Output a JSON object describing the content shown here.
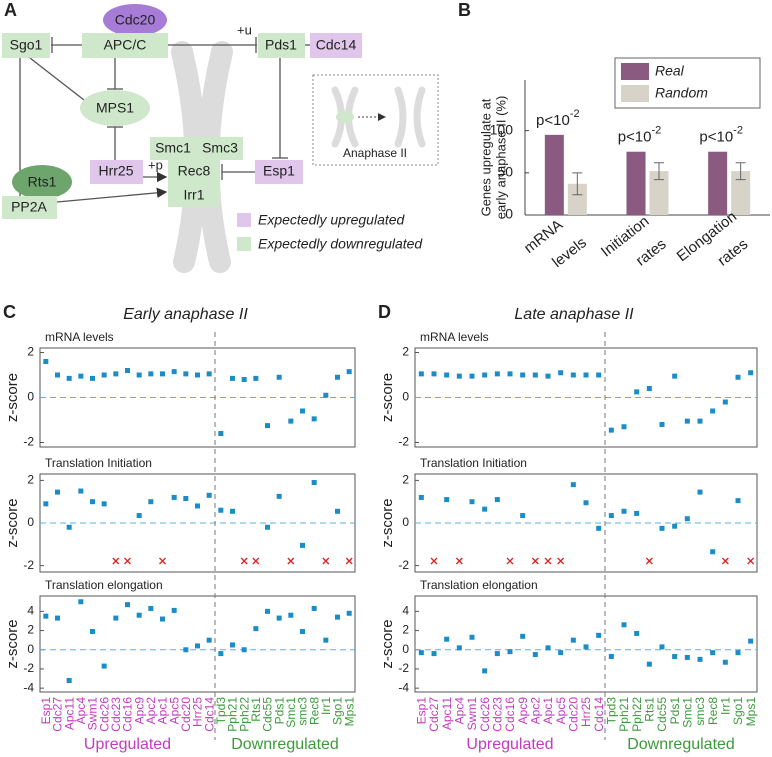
{
  "diagram": {
    "panel_label": "A",
    "nodes": [
      {
        "label": "Cdc20"
      },
      {
        "label": "APC/C"
      },
      {
        "label": "Sgo1"
      },
      {
        "label": "Pds1"
      },
      {
        "label": "Cdc14"
      },
      {
        "label": "MPS1"
      },
      {
        "label": "Hrr25"
      },
      {
        "label": "Smc1"
      },
      {
        "label": "Smc3"
      },
      {
        "label": "Rec8"
      },
      {
        "label": "Irr1"
      },
      {
        "label": "Esp1"
      },
      {
        "label": "Rts1"
      },
      {
        "label": "PP2A"
      }
    ],
    "edge_labels": [
      "+u",
      "+p"
    ],
    "legend": [
      "Expectedly upregulated",
      "Expectedly downregulated"
    ],
    "inset_label": "Anaphase II"
  },
  "chart_data": [
    {
      "type": "bar",
      "panel_label": "B",
      "ylabel": [
        "Genes upregulate at",
        "early anaphase II (%)"
      ],
      "categories": [
        [
          "mRNA",
          "levels"
        ],
        [
          "Initiation",
          "rates"
        ],
        [
          "Elongation",
          "rates"
        ]
      ],
      "series": [
        {
          "name": "Real",
          "color": "#8a5a80",
          "values": [
            95,
            75,
            75
          ]
        },
        {
          "name": "Random",
          "color": "#d8d3c8",
          "values": [
            37,
            52,
            52
          ],
          "errors": [
            13,
            10,
            10
          ]
        }
      ],
      "annotations": [
        {
          "base": "p<10",
          "exponent": "-2"
        },
        {
          "base": "p<10",
          "exponent": "-2"
        },
        {
          "base": "p<10",
          "exponent": "-2"
        }
      ],
      "ylim": [
        0,
        160
      ],
      "yticks": [
        0,
        50,
        100
      ],
      "legend": "top-right"
    },
    {
      "type": "strip",
      "panel_label": "C",
      "title": "Early anaphase II",
      "color": "#1a8cc8",
      "missing_color": "#e02020",
      "zero_line": true,
      "groups": [
        {
          "name": "Upregulated",
          "color": "#c23bc2",
          "categories": [
            "Esp1",
            "Cdc27",
            "Apc11",
            "Apc4",
            "Swm1",
            "Cdc26",
            "Cdc23",
            "Cdc16",
            "Apc9",
            "Apc2",
            "Apc1",
            "Apc5",
            "Cdc20",
            "Hrr25",
            "Cdc14"
          ]
        },
        {
          "name": "Downregulated",
          "color": "#3c9a3c",
          "categories": [
            "Tpd3",
            "Pph21",
            "Pph22",
            "Rts1",
            "Cdc55",
            "Pds1",
            "Smc1",
            "smc3",
            "Rec8",
            "Irr1",
            "Sgo1",
            "Mps1"
          ]
        }
      ],
      "subplots": [
        {
          "title": "mRNA levels",
          "ylabel": "z-score",
          "ylim": [
            -2.2,
            2.2
          ],
          "yticks": [
            -2,
            0,
            2
          ],
          "values": [
            1.6,
            1.0,
            0.85,
            0.95,
            0.85,
            1.0,
            1.05,
            1.2,
            1.0,
            1.05,
            1.05,
            1.15,
            1.05,
            1.0,
            1.05,
            -1.6,
            0.85,
            0.8,
            0.85,
            -1.25,
            0.9,
            -1.05,
            -0.6,
            -0.95,
            0.1,
            0.9,
            1.15
          ]
        },
        {
          "title": "Translation Initiation",
          "ylabel": "z-score",
          "ylim": [
            -2.3,
            2.3
          ],
          "yticks": [
            -2,
            0,
            2
          ],
          "values": [
            0.9,
            1.45,
            -0.2,
            1.5,
            1.0,
            0.9,
            null,
            null,
            0.35,
            1.0,
            null,
            1.2,
            1.15,
            0.8,
            1.3,
            0.6,
            0.55,
            null,
            null,
            -0.2,
            1.25,
            null,
            -1.05,
            1.9,
            null,
            0.55,
            null
          ]
        },
        {
          "title": "Translation elongation",
          "ylabel": "z-score",
          "ylim": [
            -4.4,
            5.6
          ],
          "yticks": [
            -4,
            -2,
            0,
            2,
            4
          ],
          "values": [
            3.5,
            3.3,
            -3.2,
            5.0,
            1.9,
            -1.7,
            3.3,
            4.7,
            3.6,
            4.3,
            3.2,
            4.1,
            0.0,
            0.4,
            1.0,
            -0.4,
            0.5,
            0.0,
            2.2,
            4.0,
            3.3,
            3.6,
            1.9,
            4.3,
            1.0,
            3.4,
            3.8
          ]
        }
      ]
    },
    {
      "type": "strip",
      "panel_label": "D",
      "title": "Late anaphase II",
      "color": "#1a8cc8",
      "missing_color": "#e02020",
      "zero_line": true,
      "groups": [
        {
          "name": "Upregulated",
          "color": "#c23bc2",
          "categories": [
            "Esp1",
            "Cdc27",
            "Apc11",
            "Apc4",
            "Swm1",
            "Cdc26",
            "Cdc23",
            "Cdc16",
            "Apc9",
            "Apc2",
            "Apc1",
            "Apc5",
            "Cdc20",
            "Hrr25",
            "Cdc14"
          ]
        },
        {
          "name": "Downregulated",
          "color": "#3c9a3c",
          "categories": [
            "Tpd3",
            "Pph21",
            "Pph22",
            "Rts1",
            "Cdc55",
            "Pds1",
            "Smc1",
            "smc3",
            "Rec8",
            "Irr1",
            "Sgo1",
            "Mps1"
          ]
        }
      ],
      "subplots": [
        {
          "title": "mRNA levels",
          "ylabel": "z-score",
          "ylim": [
            -2.2,
            2.2
          ],
          "yticks": [
            -2,
            0,
            2
          ],
          "values": [
            1.05,
            1.05,
            1.0,
            0.95,
            0.95,
            1.0,
            1.05,
            1.05,
            1.0,
            1.0,
            0.95,
            1.1,
            1.0,
            1.0,
            1.0,
            -1.45,
            -1.3,
            0.25,
            0.4,
            -1.2,
            0.95,
            -1.05,
            -1.05,
            -0.6,
            -0.2,
            0.9,
            1.1
          ]
        },
        {
          "title": "Translation Initiation",
          "ylabel": "z-score",
          "ylim": [
            -2.3,
            2.3
          ],
          "yticks": [
            -2,
            0,
            2
          ],
          "values": [
            1.2,
            null,
            1.1,
            null,
            1.0,
            0.65,
            1.1,
            null,
            0.35,
            null,
            null,
            null,
            1.8,
            0.95,
            -0.25,
            0.35,
            0.55,
            0.45,
            null,
            -0.25,
            -0.15,
            0.2,
            1.45,
            -1.35,
            null,
            1.05,
            null
          ]
        },
        {
          "title": "Translation elongation",
          "ylabel": "z-score",
          "ylim": [
            -4.4,
            5.6
          ],
          "yticks": [
            -4,
            -2,
            0,
            2,
            4
          ],
          "values": [
            -0.3,
            -0.4,
            1.1,
            0.2,
            1.3,
            -2.2,
            -0.4,
            -0.2,
            1.4,
            -0.5,
            0.2,
            -0.3,
            1.0,
            0.3,
            1.5,
            -0.7,
            2.6,
            1.7,
            -1.5,
            0.3,
            -0.7,
            -0.8,
            -1.0,
            -0.3,
            -1.3,
            -0.3,
            0.9
          ]
        }
      ]
    }
  ]
}
